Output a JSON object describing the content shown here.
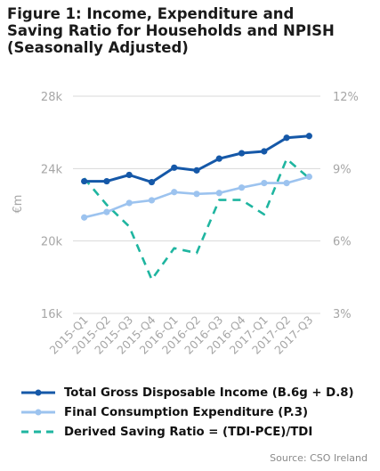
{
  "title_lines": [
    "Figure 1: Income, Expenditure and",
    "Saving Ratio for Households and NPISH",
    "(Seasonally Adjusted)"
  ],
  "source": "Source: CSO Ireland",
  "colors": {
    "income": "#1558a8",
    "expenditure": "#9cc3ef",
    "saving": "#1fb5a0",
    "grid": "#d9d9d9",
    "tick": "#a6a6a6"
  },
  "chart_data": {
    "type": "line",
    "categories": [
      "2015-Q1",
      "2015-Q2",
      "2015-Q3",
      "2015-Q4",
      "2016-Q1",
      "2016-Q2",
      "2016-Q3",
      "2016-Q4",
      "2017-Q1",
      "2017-Q2",
      "2017-Q3"
    ],
    "ylabel": "€m",
    "ylim": [
      16000,
      28000
    ],
    "yticks": [
      16000,
      20000,
      24000,
      28000
    ],
    "ytick_labels": [
      "16k",
      "20k",
      "24k",
      "28k"
    ],
    "y2lim": [
      3,
      12
    ],
    "y2ticks": [
      3,
      6,
      9,
      12
    ],
    "y2tick_labels": [
      "3%",
      "6%",
      "9%",
      "12%"
    ],
    "grid": true,
    "legend_position": "bottom",
    "series": [
      {
        "name": "Total Gross Disposable Income (B.6g + D.8)",
        "axis": "left",
        "style": "solid-markers",
        "values": [
          23300,
          23300,
          23650,
          23250,
          24050,
          23900,
          24550,
          24850,
          24950,
          25700,
          25800
        ]
      },
      {
        "name": "Final Consumption Expenditure (P.3)",
        "axis": "left",
        "style": "solid-markers",
        "values": [
          21300,
          21600,
          22100,
          22250,
          22700,
          22600,
          22650,
          22950,
          23200,
          23200,
          23550
        ]
      },
      {
        "name": "Derived Saving Ratio = (TDI-PCE)/TDI",
        "axis": "right",
        "style": "dashed",
        "values": [
          8.6,
          7.5,
          6.6,
          4.4,
          5.7,
          5.5,
          7.7,
          7.7,
          7.1,
          9.4,
          8.6
        ]
      }
    ]
  }
}
